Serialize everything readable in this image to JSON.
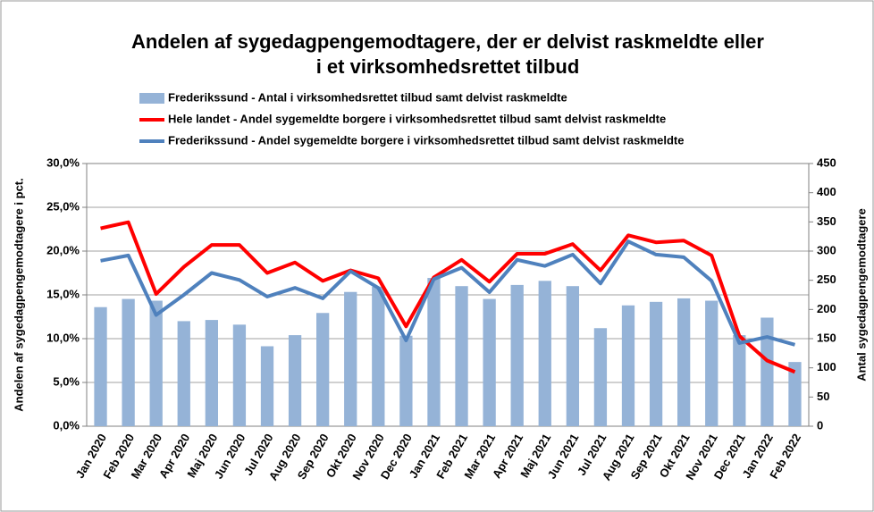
{
  "chart_data": {
    "type": "bar-line",
    "title": [
      "Andelen af sygedagpengemodtagere, der er delvist raskmeldte eller",
      "i et virksomhedsrettet tilbud"
    ],
    "y_label": "Andelen af sygedagpengemodtagere i pct.",
    "y2_label": "Antal sygedagpengemodtagere",
    "categories": [
      "Jan 2020",
      "Feb 2020",
      "Mar 2020",
      "Apr 2020",
      "Maj 2020",
      "Jun 2020",
      "Jul 2020",
      "Aug 2020",
      "Sep 2020",
      "Okt 2020",
      "Nov 2020",
      "Dec 2020",
      "Jan 2021",
      "Feb 2021",
      "Mar 2021",
      "Apr 2021",
      "Maj 2021",
      "Jun 2021",
      "Jul 2021",
      "Aug 2021",
      "Sep 2021",
      "Okt 2021",
      "Nov 2021",
      "Dec 2021",
      "Jan 2022",
      "Feb 2022"
    ],
    "series": [
      {
        "name": "Frederikssund -  Antal i virksomhedsrettet tilbud samt delvist raskmeldte",
        "type": "bar",
        "axis": "y2",
        "color": "#95b3d7",
        "values": [
          204,
          218,
          215,
          180,
          182,
          174,
          137,
          156,
          194,
          230,
          239,
          155,
          254,
          240,
          218,
          242,
          249,
          240,
          168,
          207,
          213,
          219,
          215,
          156,
          186,
          110
        ]
      },
      {
        "name": "Hele landet - Andel sygemeldte borgere i virksomhedsrettet tilbud samt delvist raskmeldte",
        "type": "line",
        "color": "#ff0000",
        "values": [
          22.6,
          23.3,
          15.1,
          18.2,
          20.7,
          20.7,
          17.5,
          18.7,
          16.6,
          17.8,
          16.9,
          11.4,
          17.0,
          19.0,
          16.5,
          19.7,
          19.7,
          20.8,
          17.8,
          21.8,
          21.0,
          21.2,
          19.5,
          10.3,
          7.5,
          6.2
        ]
      },
      {
        "name": "Frederikssund -  Andel sygemeldte borgere i virksomhedsrettet tilbud samt delvist raskmeldte",
        "type": "line",
        "color": "#4f81bd",
        "values": [
          18.9,
          19.5,
          12.7,
          15.0,
          17.5,
          16.7,
          14.8,
          15.8,
          14.6,
          17.7,
          15.8,
          9.8,
          16.8,
          18.1,
          15.3,
          19.0,
          18.3,
          19.6,
          16.3,
          21.1,
          19.6,
          19.3,
          16.6,
          9.5,
          10.2,
          9.3
        ]
      }
    ],
    "ylim": [
      0,
      30
    ],
    "yticks": [
      {
        "value": 0,
        "label": "0,0%"
      },
      {
        "value": 5,
        "label": "5,0%"
      },
      {
        "value": 10,
        "label": "10,0%"
      },
      {
        "value": 15,
        "label": "15,0%"
      },
      {
        "value": 20,
        "label": "20,0%"
      },
      {
        "value": 25,
        "label": "25,0%"
      },
      {
        "value": 30,
        "label": "30,0%"
      }
    ],
    "y2lim": [
      0,
      450
    ],
    "y2ticks": [
      0,
      50,
      100,
      150,
      200,
      250,
      300,
      350,
      400,
      450
    ],
    "grid": true,
    "legend": "top"
  }
}
